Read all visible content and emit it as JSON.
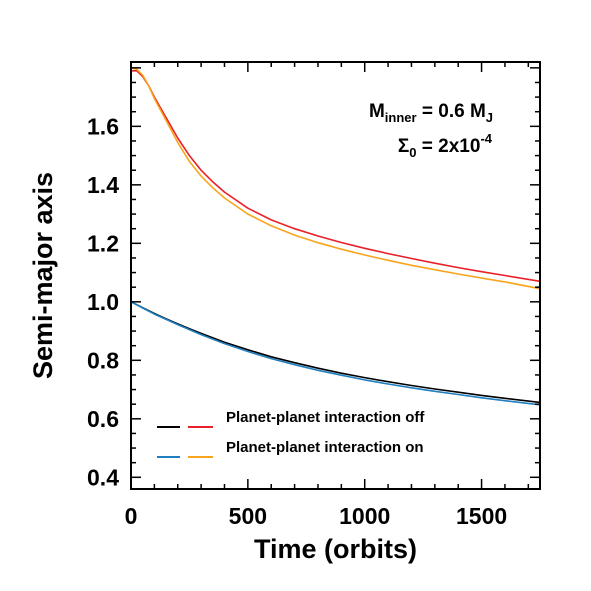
{
  "chart_data": {
    "type": "line",
    "title": "",
    "xlabel": "Time (orbits)",
    "ylabel": "Semi-major axis",
    "xlim": [
      0,
      1750
    ],
    "ylim": [
      0.36,
      1.82
    ],
    "x_ticks": [
      0,
      500,
      1000,
      1500
    ],
    "x_tick_labels": [
      "0",
      "500",
      "1000",
      "1500"
    ],
    "y_ticks": [
      0.4,
      0.6,
      0.8,
      1.0,
      1.2,
      1.4,
      1.6
    ],
    "y_tick_labels": [
      "0.4",
      "0.6",
      "0.8",
      "1.0",
      "1.2",
      "1.4",
      "1.6"
    ],
    "grid": false,
    "legend_position": "bottom-left",
    "annotations": {
      "line1_main": "M",
      "line1_sub": "inner",
      "line1_rest": " = 0.6 M",
      "line1_sub2": "J",
      "line2_main": "Σ",
      "line2_sub": "0",
      "line2_rest": " = 2x10",
      "line2_sup": "-4"
    },
    "legend": {
      "entries": [
        {
          "label": "Planet-planet interaction off",
          "colors": [
            "#000000",
            "#e8202a"
          ]
        },
        {
          "label": "Planet-planet interaction on",
          "colors": [
            "#1f7fbf",
            "#f7a51c"
          ]
        }
      ]
    },
    "series": [
      {
        "color": "#000000",
        "legend_group": 0,
        "x": [
          0,
          50,
          100,
          150,
          200,
          250,
          300,
          400,
          500,
          600,
          700,
          800,
          900,
          1000,
          1100,
          1200,
          1300,
          1400,
          1500,
          1600,
          1750
        ],
        "y": [
          1.0,
          0.98,
          0.96,
          0.942,
          0.925,
          0.908,
          0.892,
          0.862,
          0.836,
          0.812,
          0.792,
          0.773,
          0.756,
          0.741,
          0.727,
          0.714,
          0.702,
          0.691,
          0.68,
          0.67,
          0.656
        ]
      },
      {
        "color": "#1f7fbf",
        "legend_group": 1,
        "x": [
          0,
          50,
          100,
          150,
          200,
          250,
          300,
          400,
          500,
          600,
          700,
          800,
          900,
          1000,
          1100,
          1200,
          1300,
          1400,
          1500,
          1600,
          1750
        ],
        "y": [
          1.0,
          0.979,
          0.958,
          0.94,
          0.922,
          0.905,
          0.888,
          0.857,
          0.83,
          0.806,
          0.785,
          0.766,
          0.749,
          0.733,
          0.719,
          0.706,
          0.694,
          0.683,
          0.672,
          0.662,
          0.648
        ]
      },
      {
        "color": "#e8202a",
        "legend_group": 0,
        "x": [
          0,
          25,
          50,
          75,
          100,
          150,
          200,
          250,
          300,
          350,
          400,
          500,
          600,
          700,
          800,
          900,
          1000,
          1100,
          1200,
          1300,
          1400,
          1500,
          1600,
          1750
        ],
        "y": [
          1.79,
          1.79,
          1.77,
          1.74,
          1.7,
          1.63,
          1.56,
          1.5,
          1.45,
          1.41,
          1.375,
          1.32,
          1.28,
          1.25,
          1.225,
          1.203,
          1.183,
          1.165,
          1.148,
          1.132,
          1.117,
          1.103,
          1.09,
          1.07
        ]
      },
      {
        "color": "#f7a51c",
        "legend_group": 1,
        "x": [
          0,
          25,
          50,
          75,
          100,
          150,
          200,
          250,
          300,
          350,
          400,
          500,
          600,
          700,
          800,
          900,
          1000,
          1100,
          1200,
          1300,
          1400,
          1500,
          1600,
          1750
        ],
        "y": [
          1.8,
          1.795,
          1.775,
          1.74,
          1.695,
          1.62,
          1.545,
          1.48,
          1.43,
          1.39,
          1.355,
          1.3,
          1.26,
          1.228,
          1.202,
          1.18,
          1.16,
          1.142,
          1.125,
          1.11,
          1.095,
          1.081,
          1.068,
          1.045
        ]
      }
    ]
  }
}
